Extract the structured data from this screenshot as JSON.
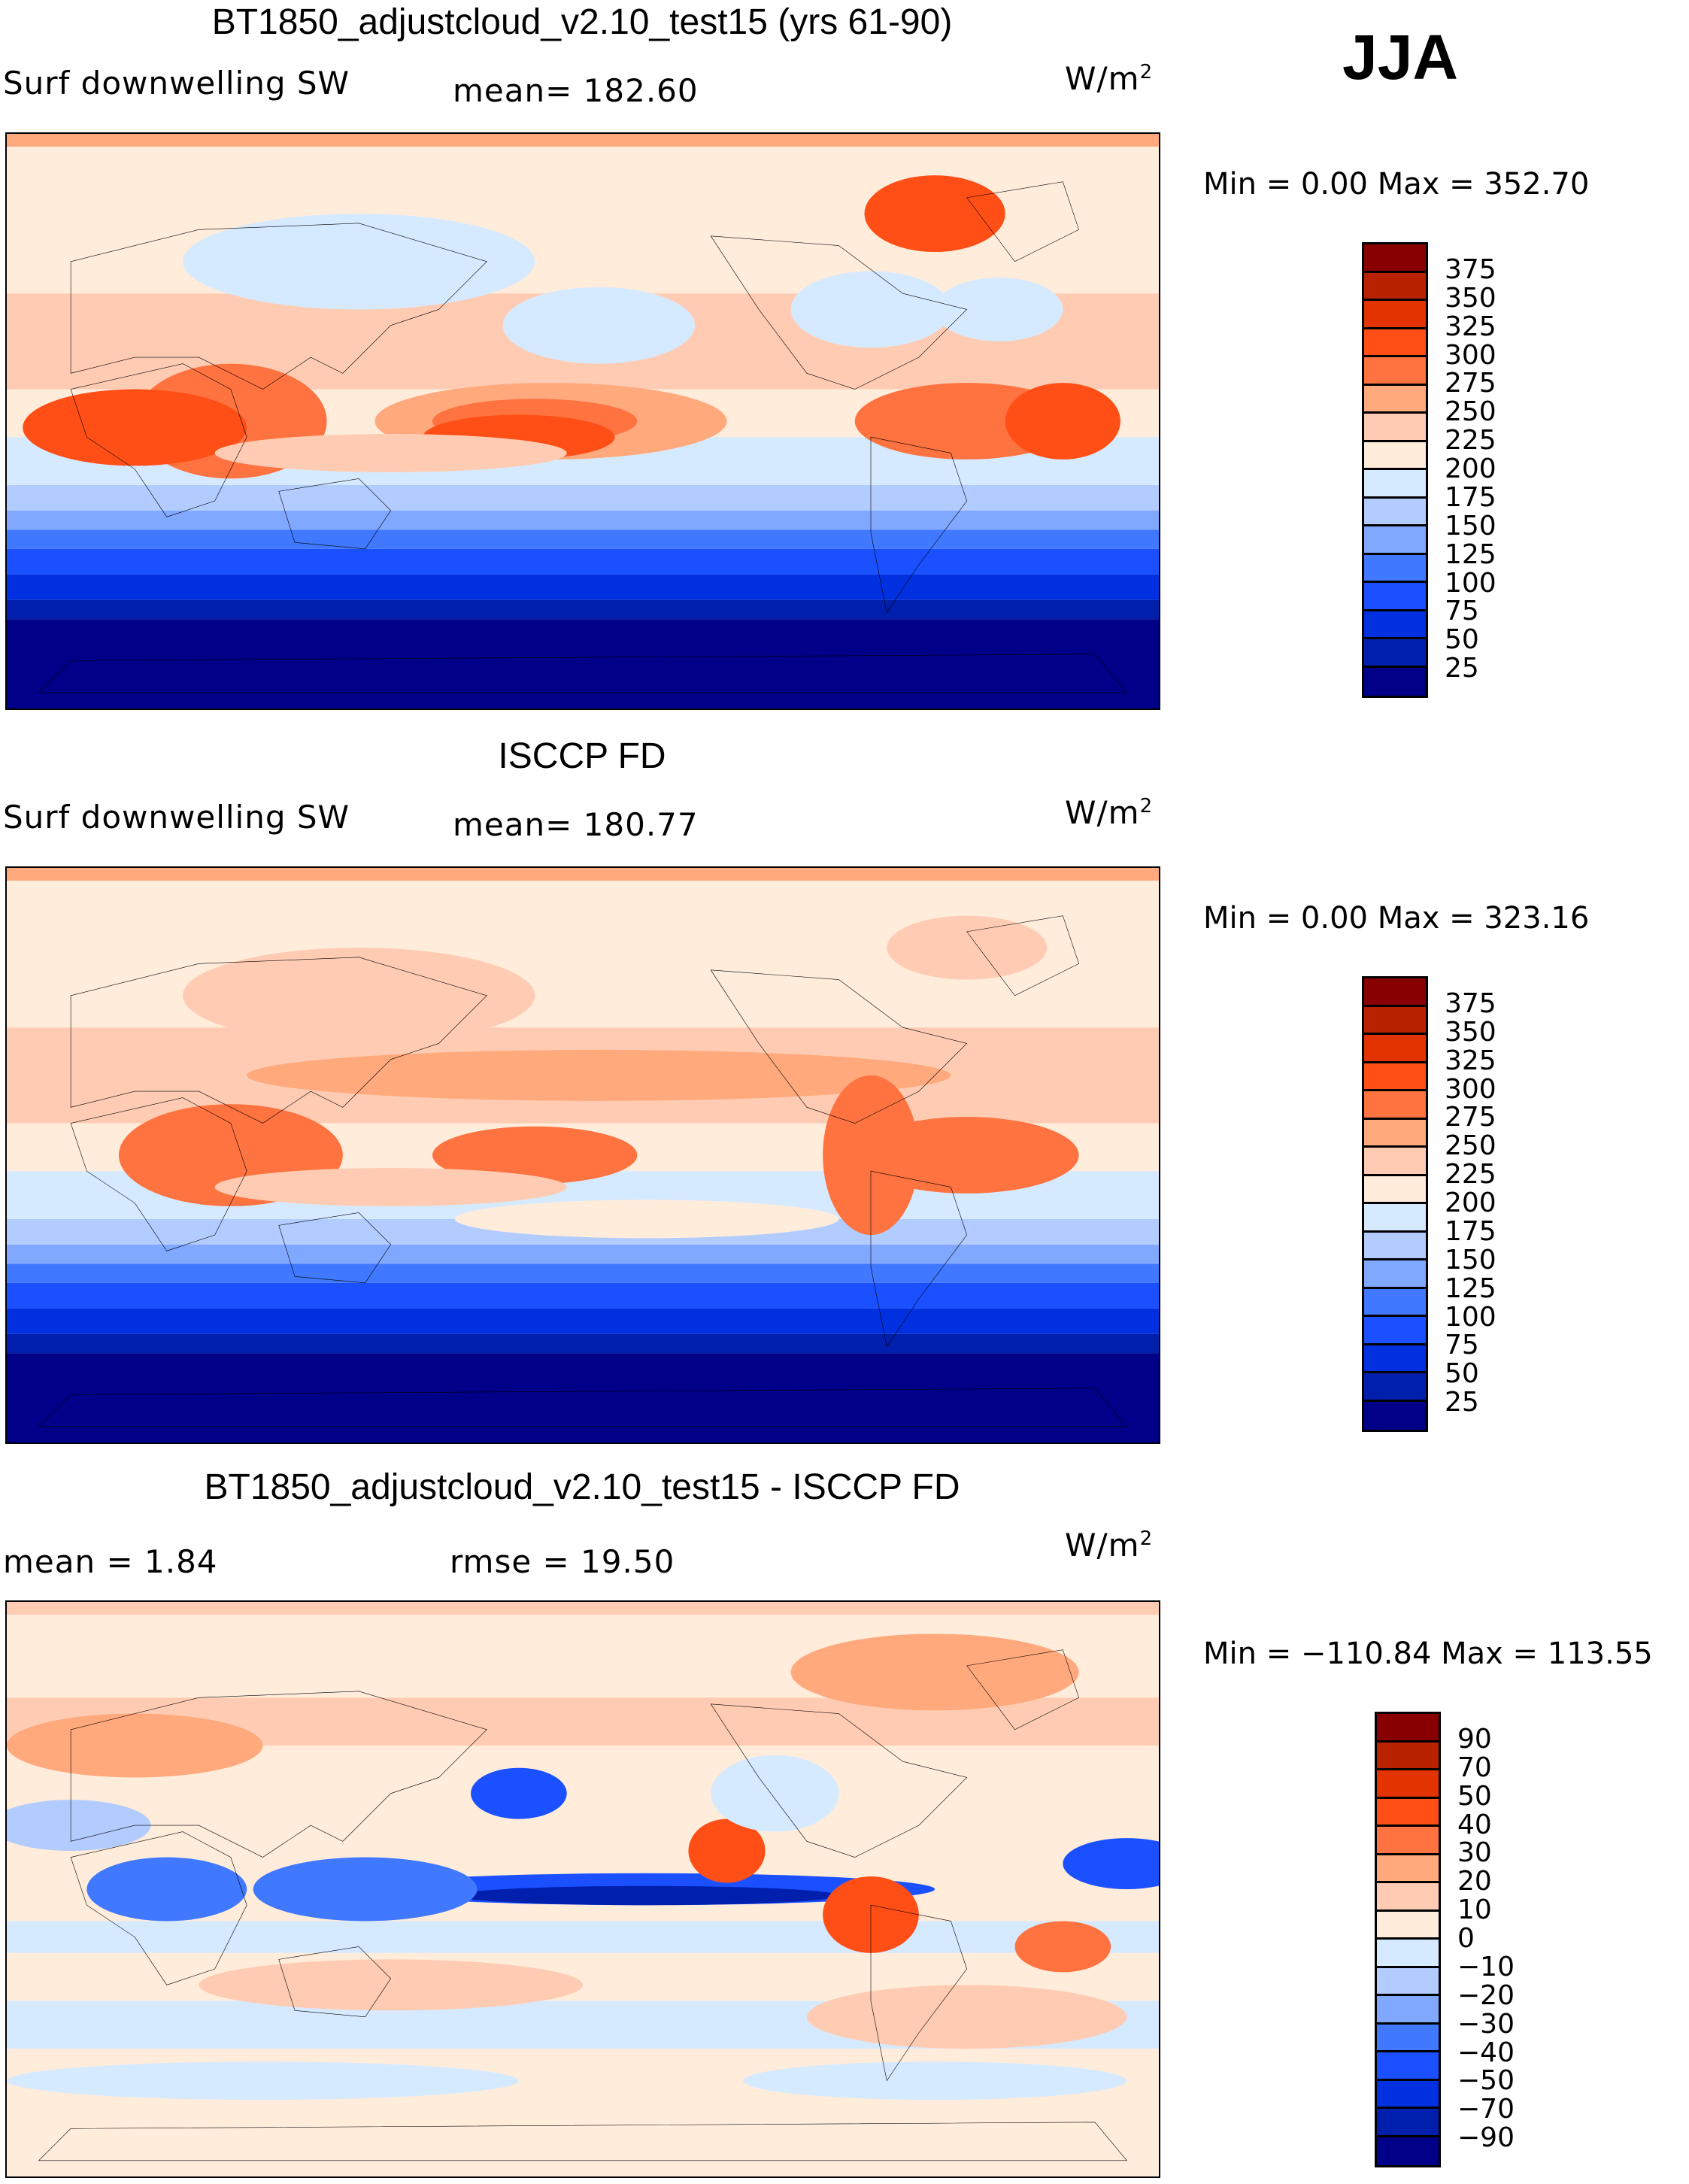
{
  "season": "JJA",
  "panels": [
    {
      "title": "BT1850_adjustcloud_v2.10_test15 (yrs 61-90)",
      "left_label": "Surf downwelling SW",
      "stat_label": "mean=  182.60",
      "units": "W/m",
      "units_sup": "2",
      "minmax": "Min =    0.00  Max  =  352.70"
    },
    {
      "title": "ISCCP FD",
      "left_label": "Surf downwelling SW",
      "stat_label": "mean=  180.77",
      "units": "W/m",
      "units_sup": "2",
      "minmax": "Min =    0.00  Max  =  323.16"
    },
    {
      "title": "BT1850_adjustcloud_v2.10_test15 - ISCCP FD",
      "left_label": "mean =    1.84",
      "stat_label": "rmse =    19.50",
      "units": "W/m",
      "units_sup": "2",
      "minmax": "Min  = −110.84  Max  =  113.55"
    }
  ],
  "chart_data": [
    {
      "type": "heatmap",
      "title": "BT1850_adjustcloud_v2.10_test15 (yrs 61-90)",
      "variable": "Surf downwelling SW",
      "units": "W/m2",
      "mean": 182.6,
      "min": 0.0,
      "max": 352.7,
      "levels": [
        "375",
        "350",
        "325",
        "300",
        "275",
        "250",
        "225",
        "200",
        "175",
        "150",
        "125",
        "100",
        "75",
        "50",
        "25"
      ]
    },
    {
      "type": "heatmap",
      "title": "ISCCP FD",
      "variable": "Surf downwelling SW",
      "units": "W/m2",
      "mean": 180.77,
      "min": 0.0,
      "max": 323.16,
      "levels": [
        "375",
        "350",
        "325",
        "300",
        "275",
        "250",
        "225",
        "200",
        "175",
        "150",
        "125",
        "100",
        "75",
        "50",
        "25"
      ]
    },
    {
      "type": "heatmap",
      "title": "BT1850_adjustcloud_v2.10_test15 - ISCCP FD",
      "units": "W/m2",
      "mean": 1.84,
      "rmse": 19.5,
      "min": -110.84,
      "max": 113.55,
      "levels": [
        "90",
        "70",
        "50",
        "40",
        "30",
        "20",
        "10",
        "0",
        "−10",
        "−20",
        "−30",
        "−40",
        "−50",
        "−70",
        "−90"
      ]
    }
  ],
  "colors": [
    "#880000",
    "#b82200",
    "#e33300",
    "#ff4f17",
    "#ff7340",
    "#ffa97d",
    "#ffccb3",
    "#ffecdb",
    "#d6eaff",
    "#b3ccff",
    "#80a8ff",
    "#4078ff",
    "#1a50ff",
    "#0030e0",
    "#001fad",
    "#000088"
  ]
}
